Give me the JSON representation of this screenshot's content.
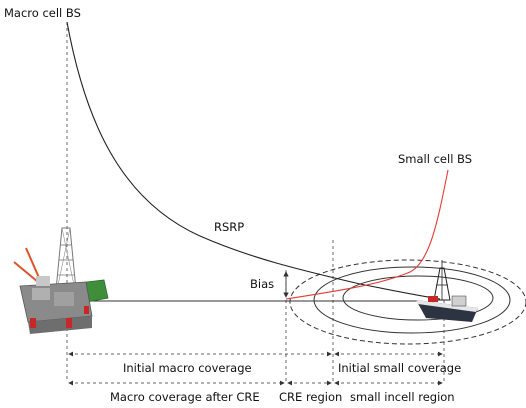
{
  "labels": {
    "macro_bs": "Macro cell BS",
    "small_bs": "Small cell BS",
    "rsrp": "RSRP",
    "bias": "Bias",
    "initial_macro": "Initial macro coverage",
    "initial_small": "Initial small coverage",
    "macro_after_cre": "Macro coverage after CRE",
    "cre_region": "CRE region",
    "small_incell": "small incell region"
  },
  "icons": {
    "macro_station": "offshore-platform-icon",
    "small_station": "ship-icon"
  },
  "colors": {
    "macro_curve": "#222222",
    "small_curve": "#e53935",
    "lines": "#333333"
  }
}
